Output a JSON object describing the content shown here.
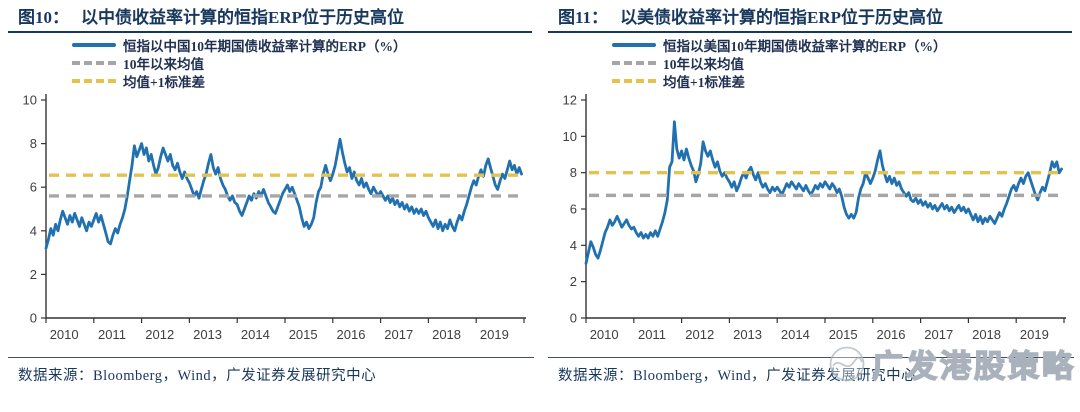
{
  "figures": [
    {
      "title_prefix": "图10：",
      "title_rest": "以中债收益率计算的恒指ERP位于历史高位",
      "source": "数据来源：Bloomberg，Wind，广发证券发展研究中心"
    },
    {
      "title_prefix": "图11：",
      "title_rest": "以美债收益率计算的恒指ERP位于历史高位",
      "source": "数据来源：Bloomberg，Wind，广发证券发展研究中心"
    }
  ],
  "watermark": {
    "text": "广发港股策略"
  },
  "colors": {
    "line_blue": "#2171B0",
    "mean_gray": "#A6A6A6",
    "std_yellow": "#E3C34D",
    "title_navy": "#17375E",
    "axis": "#333333"
  },
  "chart_data": [
    {
      "type": "line",
      "title": "图10：以中债收益率计算的恒指ERP位于历史高位",
      "xlabel": "",
      "ylabel": "",
      "xlim": [
        2010,
        2020
      ],
      "ylim": [
        0,
        10
      ],
      "ytick_step": 2,
      "xticks": [
        2010,
        2011,
        2012,
        2013,
        2014,
        2015,
        2016,
        2017,
        2018,
        2019
      ],
      "grid": false,
      "legend_position": "top-left",
      "series": [
        {
          "name": "恒指以中国10年期国债收益率计算的ERP（%）",
          "color": "#2171B0",
          "x_start": 2010,
          "x_step": 0.05,
          "values": [
            3.2,
            3.6,
            4.1,
            3.8,
            4.3,
            4.0,
            4.5,
            4.9,
            4.6,
            4.3,
            4.7,
            4.4,
            4.8,
            4.5,
            4.2,
            4.6,
            4.3,
            4.0,
            4.4,
            4.2,
            4.5,
            4.8,
            4.4,
            4.7,
            4.3,
            3.9,
            3.5,
            3.4,
            3.8,
            4.1,
            3.9,
            4.3,
            4.6,
            5.0,
            5.6,
            6.3,
            7.0,
            7.9,
            7.4,
            7.7,
            8.0,
            7.5,
            7.8,
            7.2,
            7.5,
            7.0,
            6.6,
            6.9,
            7.4,
            7.8,
            7.5,
            7.2,
            7.5,
            7.0,
            6.8,
            7.1,
            6.7,
            6.4,
            6.7,
            6.4,
            6.2,
            5.9,
            5.6,
            5.8,
            5.5,
            5.9,
            6.3,
            6.6,
            7.1,
            7.5,
            6.9,
            6.6,
            6.9,
            6.4,
            6.1,
            5.9,
            5.6,
            5.4,
            5.6,
            5.3,
            5.2,
            4.9,
            4.7,
            5.0,
            5.3,
            5.6,
            5.4,
            5.7,
            5.5,
            5.8,
            5.6,
            5.9,
            5.6,
            5.3,
            5.1,
            4.9,
            4.8,
            5.1,
            5.4,
            5.7,
            5.9,
            6.1,
            5.8,
            6.0,
            5.7,
            5.4,
            5.1,
            4.6,
            4.2,
            4.4,
            4.1,
            4.3,
            4.6,
            5.3,
            5.8,
            6.0,
            6.6,
            7.0,
            6.6,
            6.3,
            6.6,
            7.0,
            7.6,
            8.2,
            7.6,
            7.1,
            6.7,
            6.9,
            6.4,
            6.7,
            6.3,
            6.1,
            6.4,
            6.0,
            6.2,
            5.9,
            5.7,
            6.0,
            5.8,
            5.6,
            5.8,
            5.6,
            5.4,
            5.6,
            5.3,
            5.5,
            5.2,
            5.4,
            5.1,
            5.3,
            5.0,
            5.2,
            4.9,
            5.1,
            4.8,
            5.0,
            4.8,
            5.0,
            4.7,
            4.9,
            4.6,
            4.4,
            4.2,
            4.5,
            4.1,
            4.4,
            4.0,
            4.3,
            4.1,
            4.5,
            4.2,
            4.0,
            4.4,
            4.7,
            4.5,
            4.9,
            5.2,
            5.6,
            6.0,
            6.3,
            6.1,
            6.5,
            6.8,
            6.5,
            7.0,
            7.3,
            6.9,
            6.5,
            6.1,
            5.9,
            6.3,
            6.6,
            6.4,
            6.8,
            7.2,
            6.8,
            7.0,
            6.6,
            6.9,
            6.6
          ]
        },
        {
          "name": "10年以来均值",
          "type": "hline",
          "value": 5.6,
          "color": "#A6A6A6",
          "dash": true
        },
        {
          "name": "均值+1标准差",
          "type": "hline",
          "value": 6.55,
          "color": "#E3C34D",
          "dash": true
        }
      ]
    },
    {
      "type": "line",
      "title": "图11：以美债收益率计算的恒指ERP位于历史高位",
      "xlabel": "",
      "ylabel": "",
      "xlim": [
        2010,
        2020
      ],
      "ylim": [
        0,
        12
      ],
      "ytick_step": 2,
      "xticks": [
        2010,
        2011,
        2012,
        2013,
        2014,
        2015,
        2016,
        2017,
        2018,
        2019
      ],
      "grid": false,
      "legend_position": "top-left",
      "series": [
        {
          "name": "恒指以美国10年期国债收益率计算的ERP（%）",
          "color": "#2171B0",
          "x_start": 2010,
          "x_step": 0.05,
          "values": [
            3.0,
            3.6,
            4.2,
            3.9,
            3.5,
            3.3,
            3.7,
            4.2,
            4.7,
            5.0,
            5.4,
            5.1,
            5.3,
            5.6,
            5.3,
            5.0,
            5.2,
            5.4,
            5.1,
            4.9,
            5.0,
            4.7,
            4.5,
            4.7,
            4.4,
            4.6,
            4.4,
            4.7,
            4.5,
            4.8,
            4.5,
            4.9,
            5.3,
            5.8,
            6.5,
            8.3,
            8.6,
            10.8,
            9.3,
            8.8,
            9.2,
            8.7,
            9.3,
            8.8,
            8.4,
            8.1,
            7.5,
            7.9,
            8.5,
            9.7,
            9.2,
            8.9,
            9.2,
            8.7,
            8.3,
            8.6,
            8.1,
            7.8,
            8.0,
            7.7,
            7.5,
            7.2,
            7.5,
            7.0,
            7.3,
            7.7,
            8.0,
            7.7,
            8.1,
            8.3,
            7.9,
            7.6,
            8.0,
            7.5,
            7.2,
            7.4,
            7.1,
            6.9,
            7.2,
            7.0,
            7.2,
            7.0,
            6.8,
            7.1,
            7.4,
            7.2,
            7.5,
            7.3,
            7.1,
            7.4,
            7.2,
            7.0,
            7.3,
            7.0,
            6.8,
            7.0,
            7.3,
            7.1,
            7.4,
            7.2,
            7.5,
            7.3,
            7.1,
            7.4,
            7.2,
            6.9,
            7.1,
            6.7,
            6.1,
            5.7,
            5.5,
            5.7,
            5.5,
            5.8,
            6.6,
            7.1,
            7.4,
            8.0,
            7.7,
            7.4,
            7.7,
            8.1,
            8.7,
            9.2,
            8.4,
            7.9,
            7.5,
            7.8,
            7.4,
            7.7,
            7.3,
            7.5,
            7.1,
            6.9,
            6.7,
            6.9,
            6.5,
            6.4,
            6.6,
            6.3,
            6.5,
            6.2,
            6.4,
            6.1,
            6.3,
            6.0,
            6.2,
            5.9,
            6.1,
            6.3,
            6.0,
            6.2,
            5.9,
            6.1,
            5.8,
            6.0,
            6.2,
            5.9,
            6.1,
            5.8,
            6.0,
            5.7,
            5.4,
            5.7,
            5.3,
            5.6,
            5.2,
            5.5,
            5.3,
            5.6,
            5.4,
            5.2,
            5.5,
            5.8,
            5.6,
            6.0,
            6.3,
            6.7,
            7.1,
            7.3,
            7.0,
            7.4,
            7.7,
            7.4,
            7.8,
            8.0,
            7.6,
            7.2,
            6.8,
            6.5,
            6.9,
            7.2,
            7.0,
            7.5,
            8.0,
            8.6,
            8.3,
            8.6,
            8.0,
            8.2
          ]
        },
        {
          "name": "10年以来均值",
          "type": "hline",
          "value": 6.75,
          "color": "#A6A6A6",
          "dash": true
        },
        {
          "name": "均值+1标准差",
          "type": "hline",
          "value": 8.0,
          "color": "#E3C34D",
          "dash": true
        }
      ]
    }
  ]
}
